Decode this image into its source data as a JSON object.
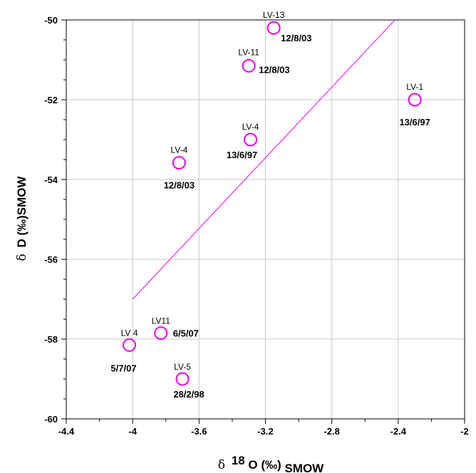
{
  "chart_data": {
    "type": "scatter",
    "xlabel": {
      "symbol": "δ",
      "sup": "18",
      "main": "O (‰)",
      "sub": "SMOW"
    },
    "ylabel": {
      "symbol": "δ",
      "main": "D (‰)SMOW"
    },
    "xlim": [
      -4.4,
      -2.0
    ],
    "ylim": [
      -60,
      -50
    ],
    "x_ticks": [
      -4.4,
      -4,
      -3.6,
      -3.2,
      -2.8,
      -2.4,
      -2
    ],
    "x_tick_labels": [
      "-4.4",
      "-4",
      "-3.6",
      "-3.2",
      "-2.8",
      "-2.4",
      "-2"
    ],
    "y_ticks": [
      -50,
      -52,
      -54,
      -56,
      -58,
      -60
    ],
    "y_tick_labels": [
      "-50",
      "-52",
      "-54",
      "-56",
      "-58",
      "-60"
    ],
    "grid": true,
    "marker_color": "#ee00ee",
    "line_color": "#ee00ee",
    "line": {
      "x": [
        -4.0,
        -2.42
      ],
      "y": [
        -57.0,
        -50.0
      ]
    },
    "points": [
      {
        "x": -3.15,
        "y": -50.2,
        "name": "LV-13",
        "date": "12/8/03"
      },
      {
        "x": -3.3,
        "y": -51.15,
        "name": "LV-11",
        "date": "12/8/03"
      },
      {
        "x": -2.3,
        "y": -52.0,
        "name": "LV-1",
        "date": "13/6/97"
      },
      {
        "x": -3.29,
        "y": -53.0,
        "name": "LV-4",
        "date": "13/6/97"
      },
      {
        "x": -3.72,
        "y": -53.58,
        "name": "LV-4",
        "date": "12/8/03"
      },
      {
        "x": -3.83,
        "y": -57.85,
        "name": "LV11",
        "date": "6/5/07"
      },
      {
        "x": -4.02,
        "y": -58.15,
        "name": "LV 4",
        "date": "5/7/07"
      },
      {
        "x": -3.7,
        "y": -59.0,
        "name": "LV-5",
        "date": "28/2/98"
      }
    ]
  }
}
